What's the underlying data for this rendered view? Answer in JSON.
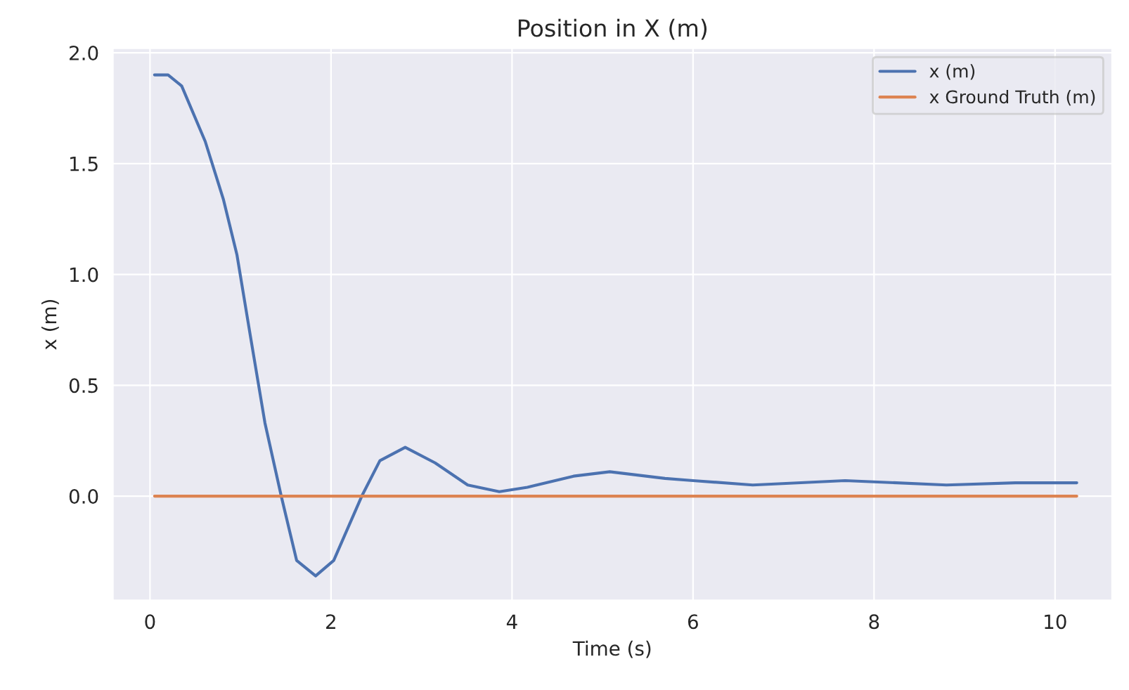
{
  "chart_data": {
    "type": "line",
    "title": "Position in X (m)",
    "xlabel": "Time (s)",
    "ylabel": "x (m)",
    "xlim": [
      -0.41,
      10.63
    ],
    "ylim": [
      -0.47,
      2.02
    ],
    "xticks": [
      0,
      2,
      4,
      6,
      8,
      10
    ],
    "yticks": [
      {
        "value": 0,
        "label": "0.0"
      },
      0.5,
      {
        "value": 1,
        "label": "1.0"
      },
      1.5,
      {
        "value": 2,
        "label": "2.0"
      }
    ],
    "grid": true,
    "legend": "top right",
    "line_style": "solid",
    "marker": "none",
    "series": [
      {
        "name": "x (m)",
        "color": "#4c72b0",
        "x": [
          0.05,
          0.2,
          0.35,
          0.61,
          0.81,
          0.96,
          1.11,
          1.27,
          1.45,
          1.62,
          1.83,
          2.03,
          2.34,
          2.54,
          2.82,
          3.15,
          3.51,
          3.86,
          4.17,
          4.68,
          5.08,
          5.69,
          6.0,
          6.66,
          7.68,
          8.8,
          9.56,
          10.24
        ],
        "values": [
          1.9,
          1.9,
          1.85,
          1.6,
          1.34,
          1.09,
          0.72,
          0.33,
          0.0,
          -0.29,
          -0.36,
          -0.29,
          0.0,
          0.16,
          0.22,
          0.15,
          0.05,
          0.02,
          0.04,
          0.09,
          0.11,
          0.08,
          0.07,
          0.05,
          0.07,
          0.05,
          0.06,
          0.06
        ]
      },
      {
        "name": "x Ground Truth (m)",
        "color": "#dd8452",
        "x": [
          0.05,
          10.24
        ],
        "values": [
          0.0,
          0.0
        ]
      }
    ]
  }
}
